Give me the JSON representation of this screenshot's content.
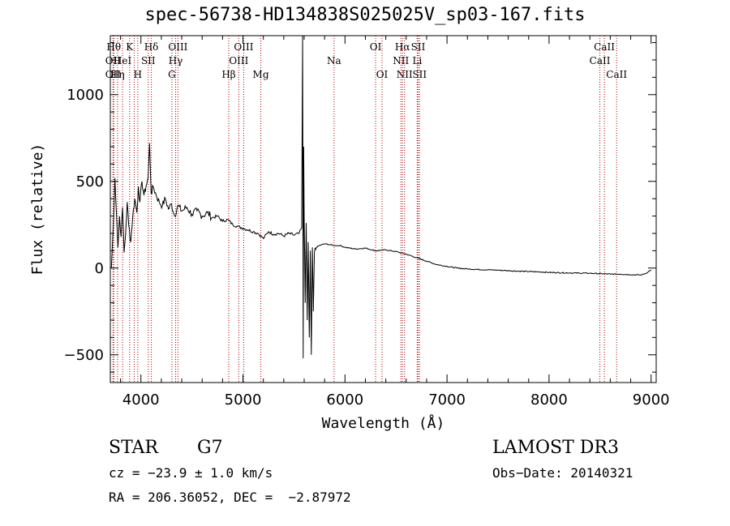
{
  "chart_data": {
    "type": "line",
    "title": "spec-56738-HD134838S025025V_sp03-167.fits",
    "xlabel": "Wavelength (Å)",
    "ylabel": "Flux (relative)",
    "xlim": [
      3700,
      9050
    ],
    "ylim": [
      -660,
      1340
    ],
    "xticks": [
      4000,
      5000,
      6000,
      7000,
      8000,
      9000
    ],
    "yticks": [
      -500,
      0,
      500,
      1000
    ],
    "series": [
      {
        "name": "spectrum",
        "x": [
          3710,
          3730,
          3745,
          3760,
          3775,
          3790,
          3805,
          3820,
          3835,
          3850,
          3865,
          3880,
          3900,
          3920,
          3940,
          3960,
          3975,
          3990,
          4010,
          4030,
          4050,
          4070,
          4085,
          4100,
          4120,
          4150,
          4180,
          4210,
          4240,
          4270,
          4300,
          4330,
          4360,
          4400,
          4450,
          4500,
          4550,
          4600,
          4650,
          4700,
          4750,
          4800,
          4850,
          4900,
          4950,
          5000,
          5050,
          5100,
          5150,
          5200,
          5250,
          5300,
          5350,
          5400,
          5450,
          5500,
          5550,
          5575,
          5585,
          5590,
          5595,
          5600,
          5610,
          5620,
          5630,
          5640,
          5650,
          5660,
          5670,
          5680,
          5690,
          5700,
          5720,
          5750,
          5800,
          5850,
          5900,
          5950,
          6000,
          6100,
          6200,
          6300,
          6400,
          6500,
          6600,
          6700,
          6800,
          6900,
          7000,
          7100,
          7200,
          7300,
          7400,
          7500,
          7600,
          7700,
          7800,
          7900,
          8000,
          8200,
          8400,
          8500,
          8600,
          8700,
          8800,
          8900,
          8950,
          9000
        ],
        "y": [
          0,
          250,
          520,
          320,
          120,
          300,
          180,
          350,
          90,
          200,
          380,
          250,
          150,
          300,
          400,
          320,
          470,
          380,
          500,
          420,
          470,
          520,
          720,
          430,
          470,
          420,
          380,
          360,
          400,
          340,
          370,
          300,
          360,
          330,
          350,
          310,
          330,
          300,
          320,
          290,
          300,
          270,
          280,
          250,
          240,
          230,
          220,
          210,
          200,
          170,
          210,
          195,
          200,
          185,
          200,
          190,
          200,
          230,
          1340,
          -520,
          700,
          300,
          -200,
          260,
          -300,
          150,
          -400,
          100,
          -500,
          120,
          -250,
          90,
          120,
          130,
          140,
          135,
          130,
          130,
          120,
          110,
          115,
          100,
          105,
          95,
          80,
          60,
          40,
          20,
          10,
          0,
          -5,
          -8,
          -10,
          -12,
          -15,
          -18,
          -20,
          -22,
          -25,
          -28,
          -30,
          -32,
          -35,
          -35,
          -38,
          -40,
          -30,
          -10
        ]
      }
    ],
    "spectral_lines": [
      {
        "wl": 3734,
        "label": "Hθ",
        "row": 1
      },
      {
        "wl": 3727,
        "label": "OII",
        "row": 2
      },
      {
        "wl": 3727,
        "label": "OII",
        "row": 3
      },
      {
        "wl": 3771,
        "label": "Hη",
        "row": 3
      },
      {
        "wl": 3820,
        "label": "HeI",
        "row": 2
      },
      {
        "wl": 3889,
        "label": "K",
        "row": 1
      },
      {
        "wl": 3934,
        "label": "",
        "row": 0
      },
      {
        "wl": 3969,
        "label": "H",
        "row": 3
      },
      {
        "wl": 4072,
        "label": "SII",
        "row": 2
      },
      {
        "wl": 4102,
        "label": "Hδ",
        "row": 1
      },
      {
        "wl": 4304,
        "label": "G",
        "row": 3
      },
      {
        "wl": 4340,
        "label": "Hγ",
        "row": 2
      },
      {
        "wl": 4363,
        "label": "OIII",
        "row": 1
      },
      {
        "wl": 4861,
        "label": "Hβ",
        "row": 3
      },
      {
        "wl": 4959,
        "label": "OIII",
        "row": 2
      },
      {
        "wl": 5007,
        "label": "OIII",
        "row": 1
      },
      {
        "wl": 5175,
        "label": "Mg",
        "row": 3
      },
      {
        "wl": 5893,
        "label": "Na",
        "row": 2
      },
      {
        "wl": 6300,
        "label": "OI",
        "row": 1
      },
      {
        "wl": 6363,
        "label": "OI",
        "row": 3
      },
      {
        "wl": 6548,
        "label": "NII",
        "row": 2
      },
      {
        "wl": 6563,
        "label": "Hα",
        "row": 1
      },
      {
        "wl": 6584,
        "label": "NII",
        "row": 3
      },
      {
        "wl": 6708,
        "label": "Li",
        "row": 2
      },
      {
        "wl": 6717,
        "label": "SII",
        "row": 1
      },
      {
        "wl": 6731,
        "label": "SII",
        "row": 3
      },
      {
        "wl": 8498,
        "label": "CaII",
        "row": 2
      },
      {
        "wl": 8542,
        "label": "CaII",
        "row": 1
      },
      {
        "wl": 8662,
        "label": "CaII",
        "row": 3
      }
    ]
  },
  "info": {
    "object_type": "STAR",
    "subclass": "G7",
    "survey": "LAMOST DR3",
    "cz": "cz = −23.9 ± 1.0 km/s",
    "obs_date": "Obs−Date: 20140321",
    "coords": "RA = 206.36052, DEC =  −2.87972"
  },
  "colors": {
    "spectrum": "#000000",
    "line_marker": "#aa0000",
    "axes": "#000000"
  }
}
